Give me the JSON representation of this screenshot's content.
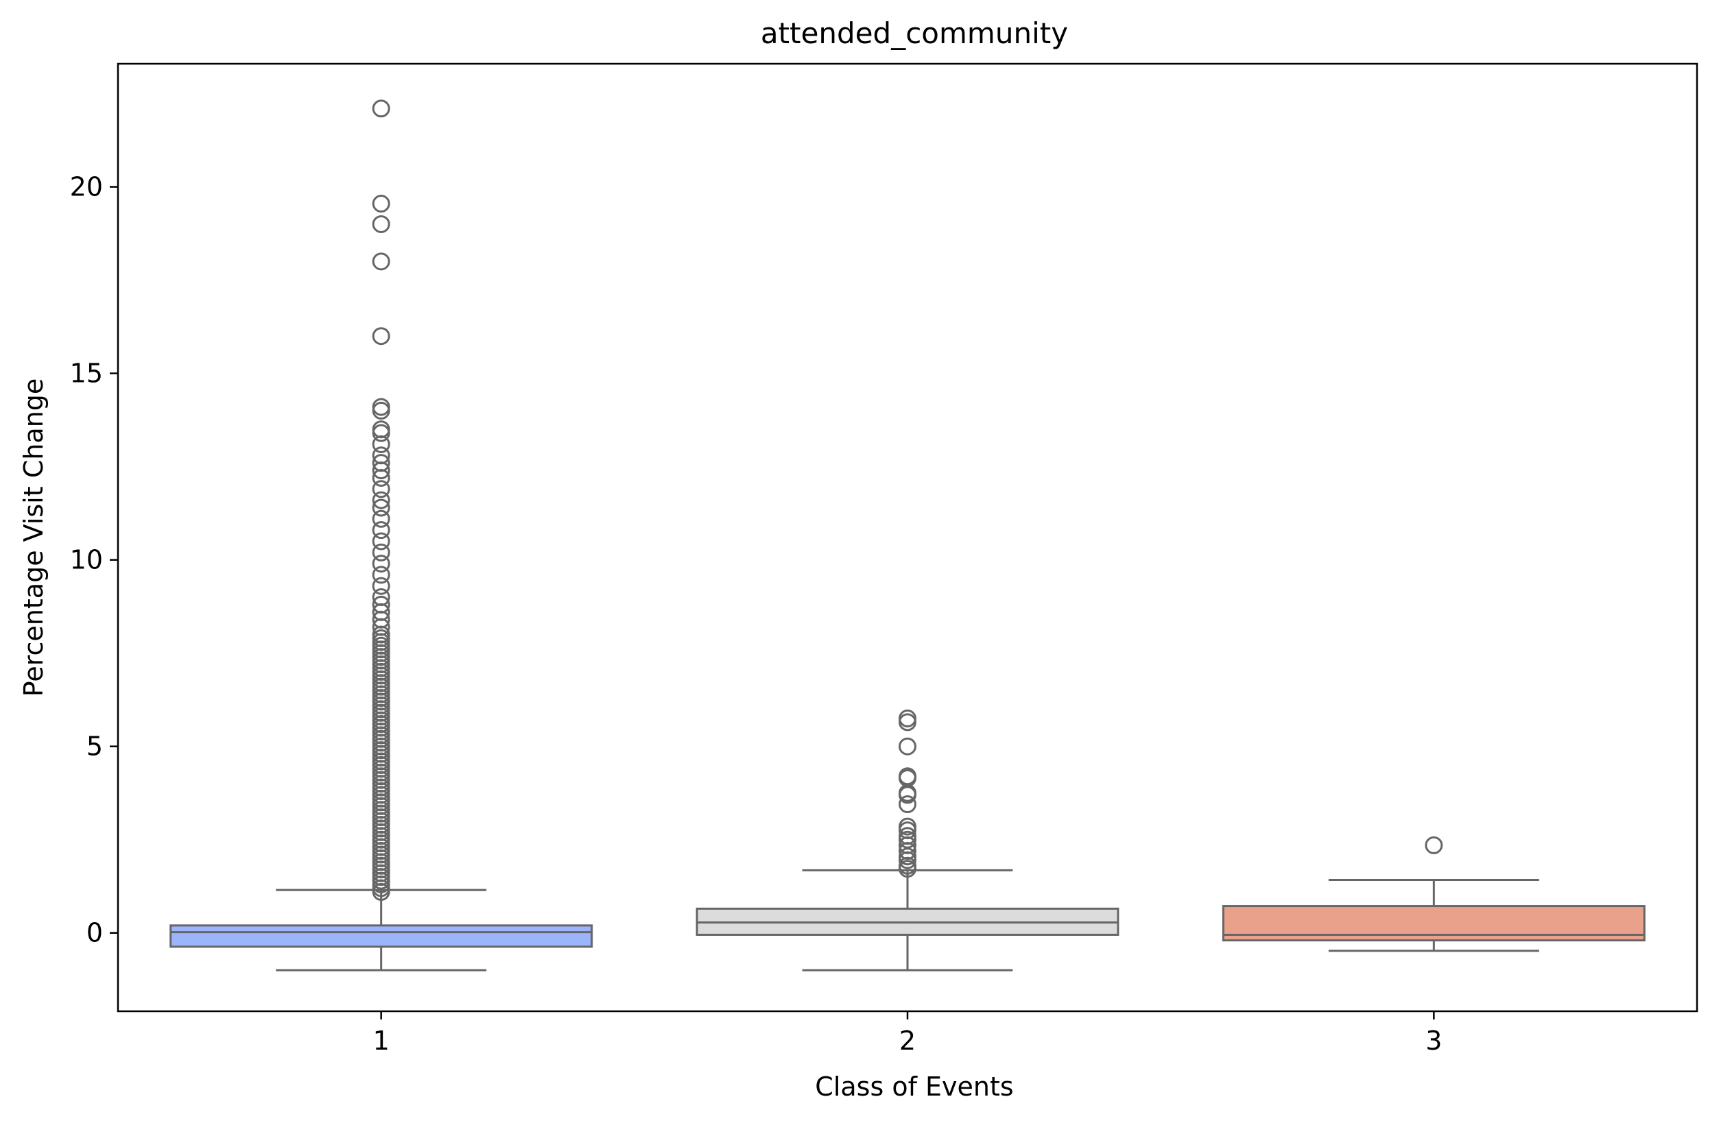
{
  "chart_data": {
    "type": "boxplot",
    "title": "attended_community",
    "xlabel": "Class of Events",
    "ylabel": "Percentage Visit Change",
    "categories": [
      "1",
      "2",
      "3"
    ],
    "ylim": [
      -2.1,
      23.3
    ],
    "yticks": [
      0,
      5,
      10,
      15,
      20
    ],
    "grid": false,
    "legend": "none",
    "series": [
      {
        "category": "1",
        "color": "#9bb4fb",
        "whisker_low": -1.0,
        "q1": -0.37,
        "median": 0.02,
        "q3": 0.2,
        "whisker_high": 1.15,
        "outliers": [
          1.1,
          1.2,
          1.3,
          1.4,
          1.5,
          1.6,
          1.7,
          1.8,
          1.9,
          2.0,
          2.1,
          2.2,
          2.3,
          2.4,
          2.5,
          2.6,
          2.7,
          2.8,
          2.9,
          3.0,
          3.1,
          3.2,
          3.3,
          3.4,
          3.5,
          3.6,
          3.7,
          3.8,
          3.9,
          4.0,
          4.1,
          4.2,
          4.3,
          4.4,
          4.5,
          4.6,
          4.7,
          4.8,
          4.9,
          5.0,
          5.1,
          5.2,
          5.3,
          5.4,
          5.5,
          5.6,
          5.7,
          5.8,
          5.9,
          6.0,
          6.1,
          6.2,
          6.3,
          6.4,
          6.5,
          6.6,
          6.7,
          6.8,
          6.9,
          7.0,
          7.1,
          7.2,
          7.3,
          7.4,
          7.5,
          7.6,
          7.7,
          7.8,
          7.9,
          8.0,
          8.2,
          8.4,
          8.6,
          8.8,
          9.0,
          9.3,
          9.6,
          9.9,
          10.2,
          10.5,
          10.8,
          11.1,
          11.4,
          11.6,
          11.9,
          12.2,
          12.4,
          12.6,
          12.8,
          13.1,
          13.4,
          13.5,
          14.0,
          14.1,
          16.0,
          18.0,
          19.0,
          19.55,
          22.1
        ]
      },
      {
        "category": "2",
        "color": "#dcdcdc",
        "whisker_low": -1.0,
        "q1": -0.05,
        "median": 0.28,
        "q3": 0.65,
        "whisker_high": 1.68,
        "outliers": [
          1.72,
          1.8,
          1.95,
          2.05,
          2.2,
          2.35,
          2.5,
          2.6,
          2.75,
          2.85,
          3.45,
          3.7,
          3.75,
          4.15,
          4.2,
          5.0,
          5.65,
          5.75
        ]
      },
      {
        "category": "3",
        "color": "#e9a18c",
        "whisker_low": -0.48,
        "q1": -0.2,
        "median": -0.05,
        "q3": 0.72,
        "whisker_high": 1.42,
        "outliers": [
          2.35
        ]
      }
    ]
  }
}
